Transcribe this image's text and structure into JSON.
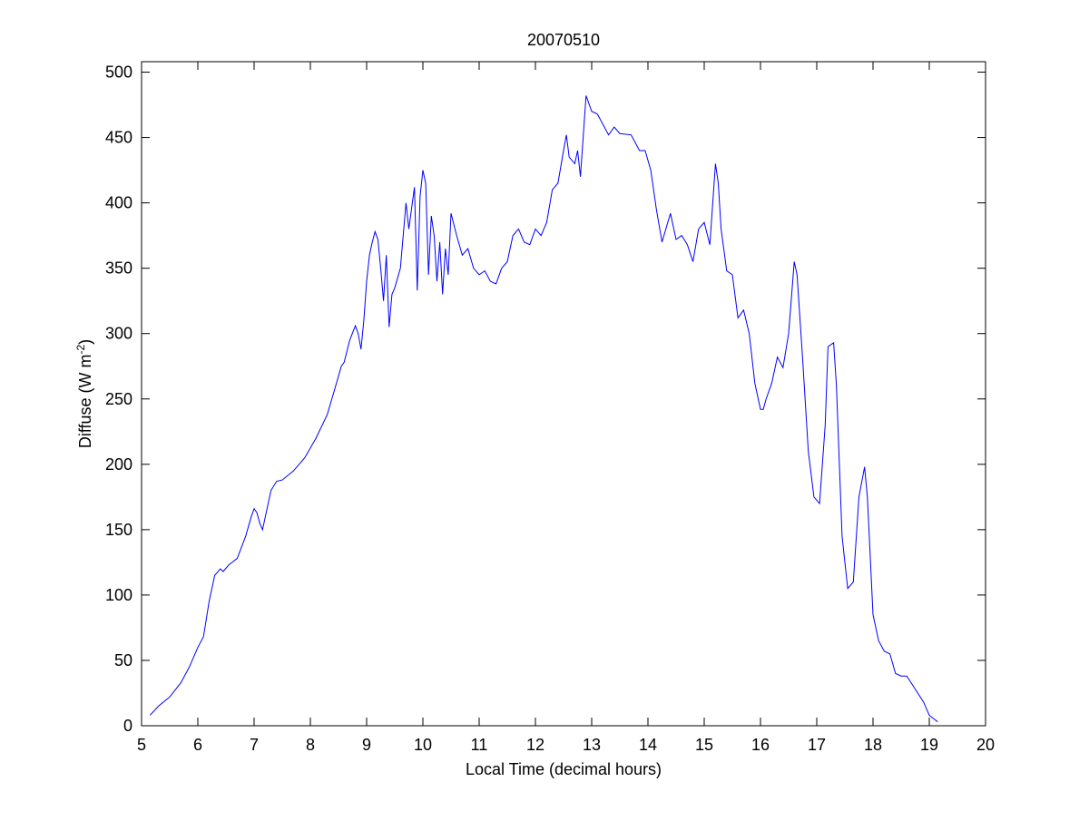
{
  "chart_data": {
    "type": "line",
    "title": "20070510",
    "xlabel": "Local Time (decimal hours)",
    "ylabel": [
      "Diffuse (W m",
      "-2",
      ")"
    ],
    "color": "#0000ff",
    "xlim": [
      5,
      20
    ],
    "xticks": [
      5,
      6,
      7,
      8,
      9,
      10,
      11,
      12,
      13,
      14,
      15,
      16,
      17,
      18,
      19,
      20
    ],
    "ylim": [
      0,
      508
    ],
    "yticks": [
      0,
      50,
      100,
      150,
      200,
      250,
      300,
      350,
      400,
      450,
      500
    ],
    "grid": false,
    "x": [
      5.15,
      5.3,
      5.5,
      5.7,
      5.85,
      6.0,
      6.1,
      6.2,
      6.3,
      6.4,
      6.45,
      6.55,
      6.7,
      6.85,
      6.95,
      7.0,
      7.05,
      7.1,
      7.15,
      7.2,
      7.3,
      7.4,
      7.5,
      7.7,
      7.9,
      8.1,
      8.3,
      8.45,
      8.55,
      8.6,
      8.7,
      8.8,
      8.85,
      8.9,
      8.95,
      9.0,
      9.05,
      9.1,
      9.15,
      9.2,
      9.25,
      9.3,
      9.35,
      9.4,
      9.45,
      9.5,
      9.6,
      9.7,
      9.75,
      9.85,
      9.9,
      9.95,
      10.0,
      10.05,
      10.1,
      10.15,
      10.2,
      10.25,
      10.3,
      10.35,
      10.4,
      10.45,
      10.5,
      10.6,
      10.7,
      10.8,
      10.9,
      11.0,
      11.1,
      11.2,
      11.3,
      11.4,
      11.5,
      11.6,
      11.7,
      11.8,
      11.9,
      12.0,
      12.1,
      12.2,
      12.3,
      12.4,
      12.5,
      12.55,
      12.6,
      12.7,
      12.75,
      12.8,
      12.9,
      13.0,
      13.1,
      13.2,
      13.3,
      13.4,
      13.5,
      13.7,
      13.85,
      13.95,
      14.05,
      14.15,
      14.25,
      14.4,
      14.5,
      14.6,
      14.7,
      14.8,
      14.9,
      15.0,
      15.1,
      15.2,
      15.25,
      15.3,
      15.4,
      15.5,
      15.6,
      15.7,
      15.8,
      15.9,
      16.0,
      16.05,
      16.1,
      16.2,
      16.3,
      16.4,
      16.5,
      16.6,
      16.65,
      16.75,
      16.85,
      16.95,
      17.05,
      17.15,
      17.2,
      17.3,
      17.35,
      17.45,
      17.55,
      17.65,
      17.75,
      17.85,
      17.9,
      18.0,
      18.1,
      18.2,
      18.3,
      18.4,
      18.5,
      18.6,
      18.75,
      18.9,
      19.0,
      19.15
    ],
    "values": [
      8,
      15,
      22,
      33,
      45,
      60,
      68,
      95,
      115,
      120,
      118,
      123,
      128,
      145,
      160,
      166,
      163,
      155,
      150,
      160,
      180,
      187,
      188,
      195,
      205,
      220,
      238,
      260,
      275,
      278,
      295,
      306,
      300,
      288,
      310,
      340,
      360,
      370,
      378,
      372,
      350,
      325,
      360,
      305,
      330,
      335,
      350,
      400,
      380,
      412,
      333,
      405,
      425,
      415,
      345,
      390,
      375,
      340,
      370,
      330,
      365,
      345,
      392,
      375,
      360,
      365,
      350,
      345,
      348,
      340,
      338,
      350,
      355,
      375,
      380,
      370,
      368,
      380,
      375,
      385,
      410,
      415,
      440,
      452,
      435,
      430,
      440,
      420,
      482,
      470,
      468,
      460,
      452,
      458,
      453,
      452,
      440,
      440,
      425,
      395,
      370,
      392,
      372,
      375,
      368,
      355,
      380,
      385,
      368,
      430,
      415,
      380,
      348,
      345,
      312,
      318,
      300,
      262,
      242,
      242,
      250,
      262,
      282,
      274,
      300,
      355,
      345,
      280,
      210,
      175,
      170,
      230,
      290,
      293,
      260,
      145,
      105,
      110,
      175,
      198,
      175,
      85,
      65,
      57,
      55,
      40,
      38,
      38,
      28,
      18,
      8,
      3
    ]
  }
}
